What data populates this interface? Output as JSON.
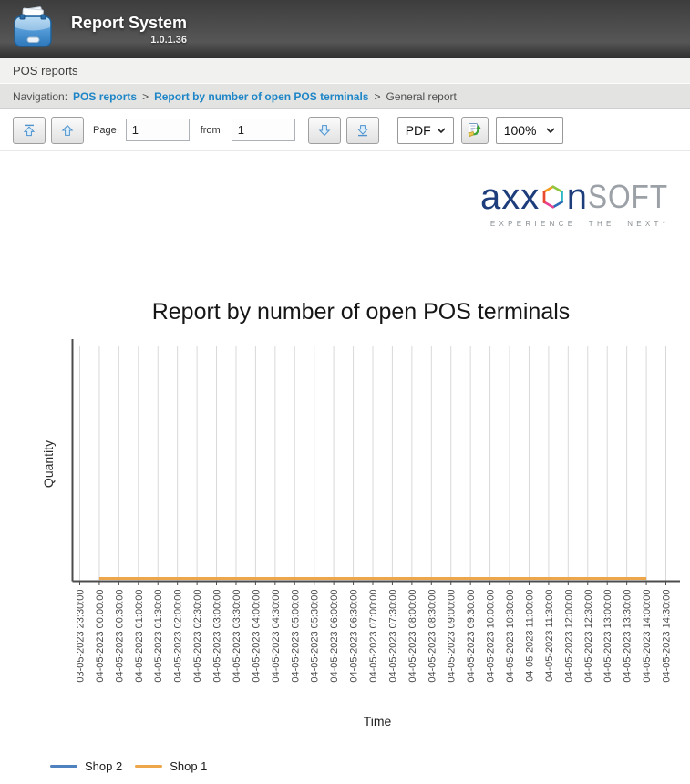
{
  "header": {
    "title": "Report System",
    "version": "1.0.1.36"
  },
  "tab_bar": {
    "label": "POS reports"
  },
  "breadcrumb": {
    "prefix": "Navigation:",
    "links": [
      "POS reports",
      "Report by number of open POS terminals"
    ],
    "separator": ">",
    "current": "General report"
  },
  "toolbar": {
    "page_label": "Page",
    "page_value": "1",
    "from_label": "from",
    "total_value": "1",
    "format_select": "PDF",
    "zoom_select": "100%"
  },
  "logo": {
    "part1": "axx",
    "part2": "n",
    "part3": "SOFT",
    "tagline": "EXPERIENCE THE NEXT*",
    "hexagon_colors": [
      "#f59b20",
      "#8dc63f",
      "#29b8c5",
      "#2e6cb5",
      "#e84393",
      "#e9492f"
    ]
  },
  "colors": {
    "link_blue": "#1e86c7",
    "arrow_blue": "#4f93ce",
    "axis_gray": "#4c4c4c",
    "grid_gray": "#d9d9d9",
    "logo_navy": "#1d3d7b",
    "logo_gray": "#9ba1a7"
  },
  "chart_data": {
    "type": "line",
    "title": "Report by number of open POS terminals",
    "xlabel": "Time",
    "ylabel": "Quantity",
    "grid": "vertical",
    "legend_position": "bottom-left",
    "y_ticks": [],
    "x_labels": [
      "03-05-2023 23:30:00",
      "04-05-2023 00:00:00",
      "04-05-2023 00:30:00",
      "04-05-2023 01:00:00",
      "04-05-2023 01:30:00",
      "04-05-2023 02:00:00",
      "04-05-2023 02:30:00",
      "04-05-2023 03:00:00",
      "04-05-2023 03:30:00",
      "04-05-2023 04:00:00",
      "04-05-2023 04:30:00",
      "04-05-2023 05:00:00",
      "04-05-2023 05:30:00",
      "04-05-2023 06:00:00",
      "04-05-2023 06:30:00",
      "04-05-2023 07:00:00",
      "04-05-2023 07:30:00",
      "04-05-2023 08:00:00",
      "04-05-2023 08:30:00",
      "04-05-2023 09:00:00",
      "04-05-2023 09:30:00",
      "04-05-2023 10:00:00",
      "04-05-2023 10:30:00",
      "04-05-2023 11:00:00",
      "04-05-2023 11:30:00",
      "04-05-2023 12:00:00",
      "04-05-2023 12:30:00",
      "04-05-2023 13:00:00",
      "04-05-2023 13:30:00",
      "04-05-2023 14:00:00",
      "04-05-2023 14:30:00"
    ],
    "series": [
      {
        "name": "Shop 2",
        "color": "#4e81bd",
        "values": [
          null,
          0,
          0,
          0,
          0,
          0,
          0,
          0,
          0,
          0,
          0,
          0,
          0,
          0,
          0,
          0,
          0,
          0,
          0,
          0,
          0,
          0,
          0,
          0,
          0,
          0,
          0,
          0,
          0,
          0,
          null
        ]
      },
      {
        "name": "Shop 1",
        "color": "#eda64a",
        "values": [
          null,
          0,
          0,
          0,
          0,
          0,
          0,
          0,
          0,
          0,
          0,
          0,
          0,
          0,
          0,
          0,
          0,
          0,
          0,
          0,
          0,
          0,
          0,
          0,
          0,
          0,
          0,
          0,
          0,
          0,
          null
        ]
      }
    ]
  }
}
